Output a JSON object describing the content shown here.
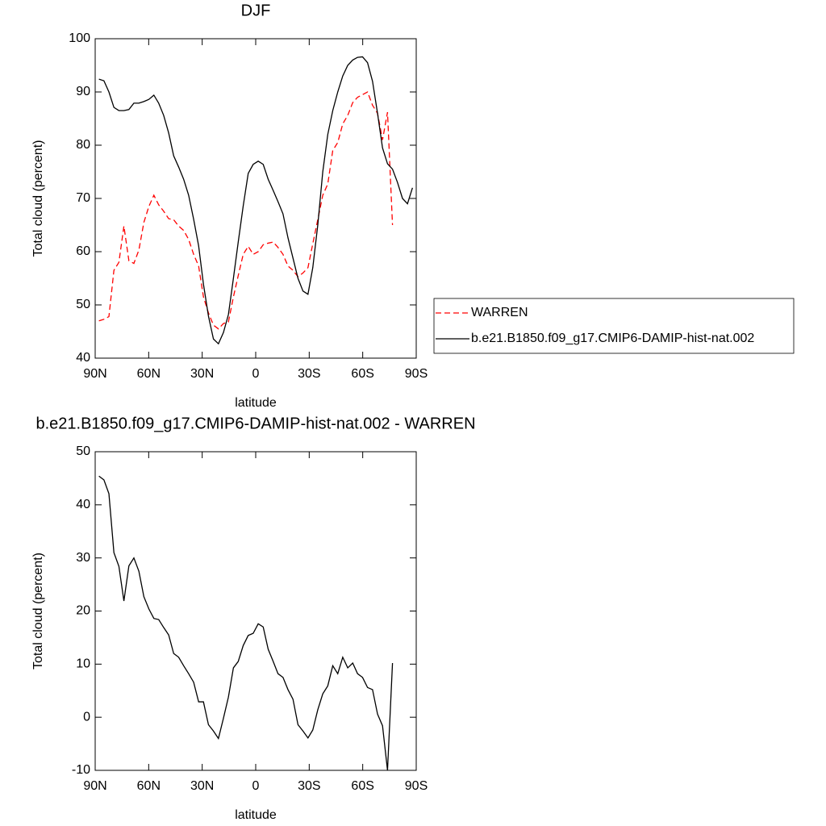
{
  "chart_data": [
    {
      "type": "line",
      "title": "DJF",
      "xlabel": "latitude",
      "ylabel": "Total cloud (percent)",
      "x": [
        87.9,
        85.1,
        82.3,
        79.5,
        76.7,
        73.9,
        71.1,
        68.3,
        65.5,
        62.7,
        59.9,
        57.1,
        54.4,
        51.6,
        48.8,
        46.0,
        43.2,
        40.4,
        37.6,
        34.8,
        32.0,
        29.3,
        26.5,
        23.7,
        20.9,
        18.1,
        15.3,
        12.5,
        9.8,
        7.0,
        4.2,
        1.4,
        -1.4,
        -4.2,
        -7.0,
        -9.8,
        -12.5,
        -15.3,
        -18.1,
        -20.9,
        -23.7,
        -26.5,
        -29.3,
        -32.0,
        -34.8,
        -37.6,
        -40.4,
        -43.2,
        -46.0,
        -48.8,
        -51.6,
        -54.4,
        -57.1,
        -59.9,
        -62.7,
        -65.5,
        -68.3,
        -71.1,
        -73.9,
        -76.7,
        -79.5,
        -82.3,
        -85.1,
        -87.9
      ],
      "xlim": [
        90,
        -90
      ],
      "xticks": [
        {
          "value": 90,
          "label": "90N"
        },
        {
          "value": 60,
          "label": "60N"
        },
        {
          "value": 30,
          "label": "30N"
        },
        0,
        {
          "value": -30,
          "label": "30S"
        },
        {
          "value": -60,
          "label": "60S"
        },
        {
          "value": -90,
          "label": "90S"
        }
      ],
      "ylim": [
        40,
        100
      ],
      "yticks": [
        40,
        50,
        60,
        70,
        80,
        90,
        100
      ],
      "legend": "right",
      "series": [
        {
          "name": "WARREN",
          "color": "#ff0000",
          "style": "dashed",
          "values": [
            47.0,
            47.3,
            47.8,
            56.5,
            58.0,
            64.8,
            58.3,
            57.8,
            60.3,
            65.5,
            68.5,
            70.6,
            68.8,
            67.6,
            66.2,
            66.0,
            64.8,
            64.0,
            62.3,
            59.5,
            57.3,
            51.5,
            48.5,
            46.2,
            45.5,
            46.5,
            46.8,
            51.5,
            55.5,
            59.5,
            61.0,
            59.5,
            60.0,
            61.3,
            61.6,
            61.8,
            60.8,
            59.5,
            57.3,
            56.5,
            55.3,
            56.0,
            57.0,
            61.5,
            66.0,
            70.6,
            72.7,
            79.0,
            80.5,
            84.0,
            85.6,
            88.0,
            89.0,
            89.5,
            90.0,
            87.5,
            86.0,
            81.0,
            86.2,
            65.0,
            null,
            null,
            null,
            null
          ]
        },
        {
          "name": "b.e21.B1850.f09_g17.CMIP6-DAMIP-hist-nat.002",
          "color": "#000000",
          "style": "solid",
          "values": [
            92.4,
            92.1,
            90.0,
            87.1,
            86.5,
            86.5,
            86.7,
            87.9,
            87.9,
            88.2,
            88.6,
            89.4,
            87.9,
            85.6,
            82.3,
            78.0,
            75.9,
            73.6,
            70.6,
            66.1,
            61.1,
            53.9,
            47.9,
            43.6,
            42.7,
            44.8,
            48.2,
            55.0,
            61.8,
            68.6,
            74.7,
            76.4,
            77.0,
            76.4,
            73.6,
            71.5,
            69.4,
            67.1,
            62.6,
            58.8,
            55.0,
            52.6,
            52.0,
            57.0,
            65.0,
            75.0,
            82.0,
            86.5,
            90.0,
            93.0,
            95.0,
            96.0,
            96.5,
            96.6,
            95.5,
            92.0,
            86.0,
            79.5,
            76.5,
            75.5,
            73.0,
            70.0,
            69.0,
            72.0
          ]
        }
      ]
    },
    {
      "type": "line",
      "title": "b.e21.B1850.f09_g17.CMIP6-DAMIP-hist-nat.002 - WARREN",
      "xlabel": "latitude",
      "ylabel": "Total cloud (percent)",
      "x": [
        87.9,
        85.1,
        82.3,
        79.5,
        76.7,
        73.9,
        71.1,
        68.3,
        65.5,
        62.7,
        59.9,
        57.1,
        54.4,
        51.6,
        48.8,
        46.0,
        43.2,
        40.4,
        37.6,
        34.8,
        32.0,
        29.3,
        26.5,
        23.7,
        20.9,
        18.1,
        15.3,
        12.5,
        9.8,
        7.0,
        4.2,
        1.4,
        -1.4,
        -4.2,
        -7.0,
        -9.8,
        -12.5,
        -15.3,
        -18.1,
        -20.9,
        -23.7,
        -26.5,
        -29.3,
        -32.0,
        -34.8,
        -37.6,
        -40.4,
        -43.2,
        -46.0,
        -48.8,
        -51.6,
        -54.4,
        -57.1,
        -59.9,
        -62.7,
        -65.5,
        -68.3,
        -71.1,
        -73.9,
        -76.7,
        -79.5,
        -82.3,
        -85.1,
        -87.9
      ],
      "xlim": [
        90,
        -90
      ],
      "xticks": [
        {
          "value": 90,
          "label": "90N"
        },
        {
          "value": 60,
          "label": "60N"
        },
        {
          "value": 30,
          "label": "30N"
        },
        0,
        {
          "value": -30,
          "label": "30S"
        },
        {
          "value": -60,
          "label": "60S"
        },
        {
          "value": -90,
          "label": "90S"
        }
      ],
      "ylim": [
        -10,
        50
      ],
      "yticks": [
        -10,
        0,
        10,
        20,
        30,
        40,
        50
      ],
      "series": [
        {
          "color": "#000000",
          "style": "solid",
          "values": [
            45.4,
            44.7,
            42.1,
            31.0,
            28.4,
            21.9,
            28.5,
            30.0,
            27.5,
            22.7,
            20.4,
            18.6,
            18.4,
            16.9,
            15.5,
            12.0,
            11.3,
            9.7,
            8.2,
            6.6,
            2.9,
            2.9,
            -1.4,
            -2.6,
            -4.0,
            -0.2,
            3.8,
            9.3,
            10.5,
            13.5,
            15.4,
            15.8,
            17.6,
            17.0,
            12.8,
            10.5,
            8.2,
            7.5,
            5.2,
            3.4,
            -1.4,
            -2.6,
            -3.9,
            -2.4,
            1.4,
            4.4,
            5.9,
            9.7,
            8.2,
            11.3,
            9.3,
            10.2,
            8.2,
            7.5,
            5.6,
            5.2,
            0.6,
            -1.6,
            -10.0,
            10.2,
            null,
            null,
            null,
            null
          ]
        }
      ]
    }
  ]
}
